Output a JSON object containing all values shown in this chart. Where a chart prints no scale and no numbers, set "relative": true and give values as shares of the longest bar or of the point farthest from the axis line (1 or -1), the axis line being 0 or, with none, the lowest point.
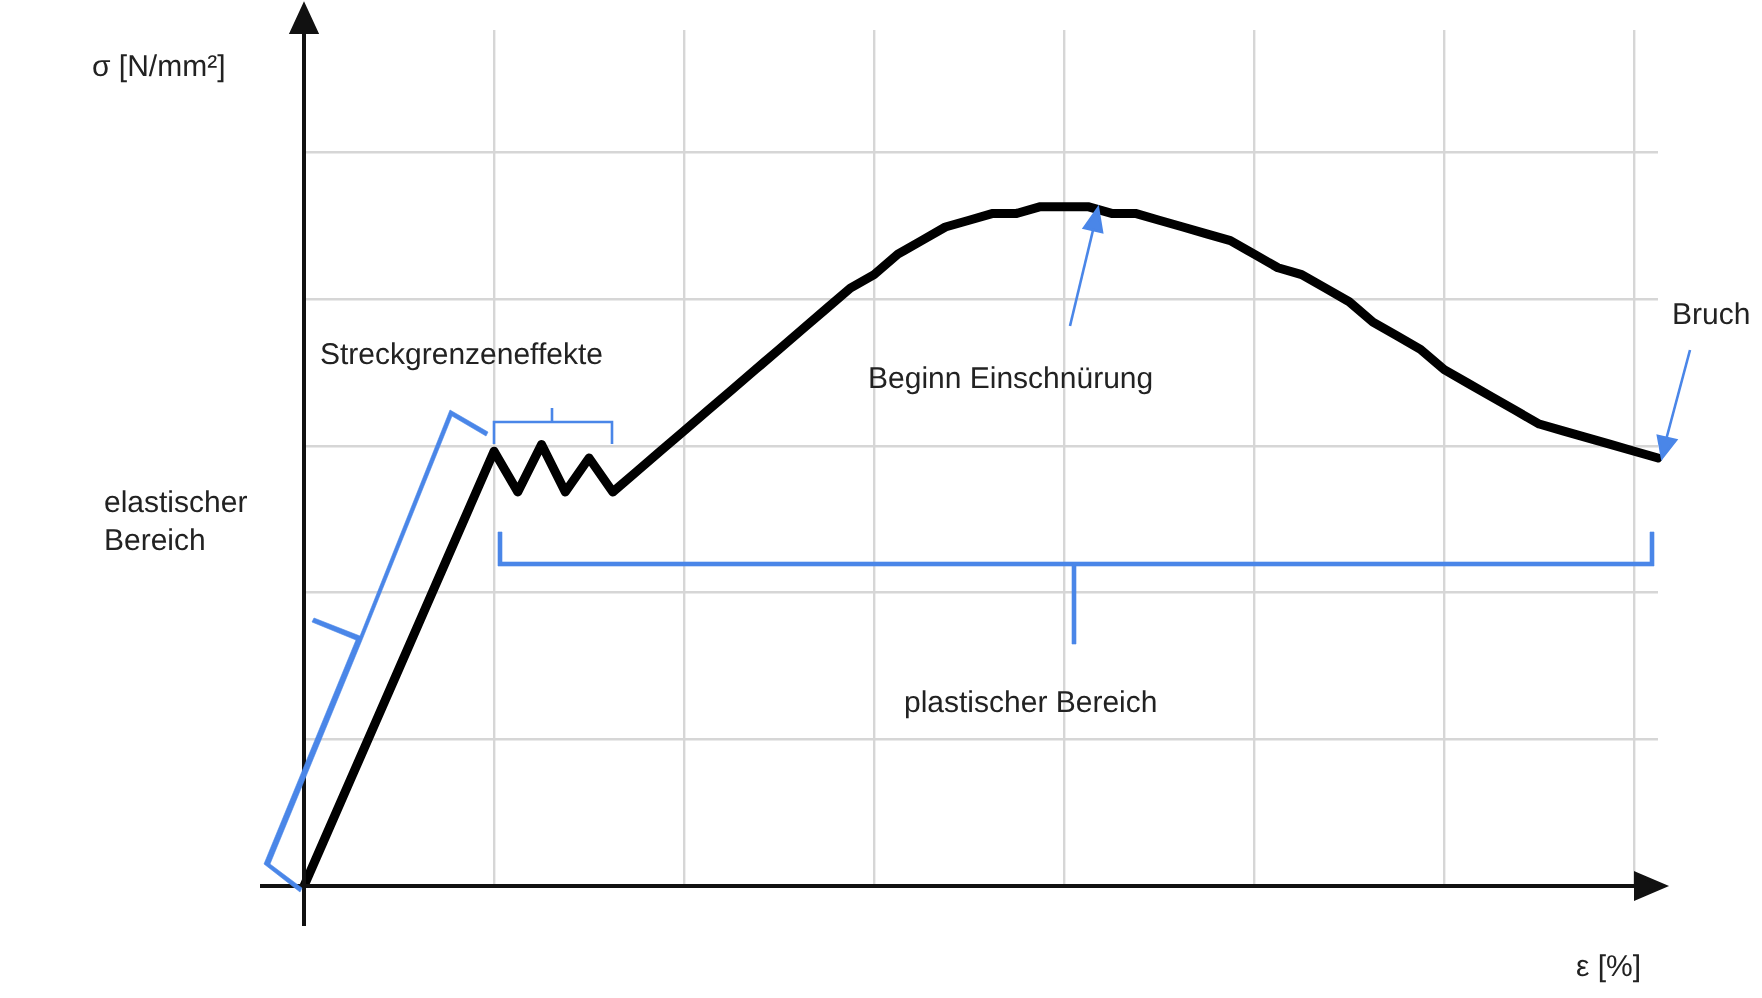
{
  "chart_data": {
    "type": "line",
    "relative": true,
    "xlabel": "ε [%]",
    "ylabel": "σ [N/mm²]",
    "categories": [
      null,
      null,
      null,
      null,
      null,
      null,
      null,
      null,
      null,
      null,
      null,
      null,
      null,
      null,
      null,
      null,
      null,
      null,
      null,
      null,
      null,
      null,
      null,
      null,
      null,
      null,
      null,
      null,
      null,
      null,
      null,
      null,
      null,
      null,
      null,
      null,
      null,
      null,
      null,
      null,
      null,
      null,
      null,
      null,
      null,
      null,
      null,
      null,
      null,
      null,
      null,
      null,
      null,
      null,
      null,
      null,
      null,
      null
    ],
    "series": [
      {
        "color": "#000000",
        "values": [
          0,
          0.08,
          0.16,
          0.24,
          0.32,
          0.4,
          0.48,
          0.56,
          0.64,
          0.58,
          0.65,
          0.58,
          0.63,
          0.58,
          0.61,
          0.64,
          0.67,
          0.7,
          0.73,
          0.76,
          0.79,
          0.82,
          0.85,
          0.88,
          0.9,
          0.93,
          0.95,
          0.97,
          0.98,
          0.99,
          0.99,
          1,
          1,
          1,
          0.99,
          0.99,
          0.98,
          0.97,
          0.96,
          0.95,
          0.93,
          0.91,
          0.9,
          0.88,
          0.86,
          0.83,
          0.81,
          0.79,
          0.76,
          0.74,
          0.72,
          0.7,
          0.68,
          0.67,
          0.66,
          0.65,
          0.64,
          0.63
        ]
      }
    ],
    "annotations": [
      "Streckgrenzeneffekte",
      "elastischer Bereich",
      "Beginn Einschnürung",
      "Bruch",
      "plastischer Bereich"
    ],
    "grid": true,
    "legend": false,
    "marker": "none",
    "line_style": "solid",
    "tick_labels": false
  }
}
